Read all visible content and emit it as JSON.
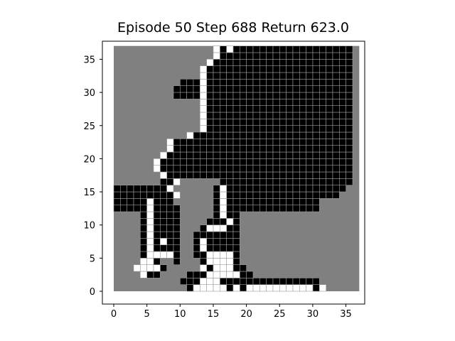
{
  "title": {
    "episode_label": "Episode",
    "episode": 50,
    "step_label": "Step",
    "step": 688,
    "return_label": "Return",
    "return": "623.0"
  },
  "chart_data": {
    "type": "heatmap",
    "x_ticks": [
      0,
      5,
      10,
      15,
      20,
      25,
      30,
      35
    ],
    "y_ticks": [
      0,
      5,
      10,
      15,
      20,
      25,
      30,
      35
    ],
    "xlim": [
      -1.5,
      37.5
    ],
    "ylim": [
      -1.8,
      38.5
    ],
    "grid": false,
    "colors": {
      "background": "#808080",
      "wall": "#000000",
      "path": "#ffffff",
      "frame": "#000000"
    },
    "grid_size": 37,
    "cells": {
      "0": {
        "black": [
          11,
          17,
          19,
          30
        ],
        "white": [
          12,
          13,
          14,
          15,
          16,
          18,
          20,
          21,
          22,
          23,
          24,
          25,
          26,
          27,
          28,
          29,
          31
        ]
      },
      "1": {
        "black": [
          10,
          11,
          12,
          16,
          17,
          18,
          19,
          20,
          21,
          22,
          23,
          24,
          25,
          26,
          27,
          28,
          29,
          30
        ],
        "white": [
          13,
          14,
          15
        ]
      },
      "2": {
        "black": [
          5,
          6,
          11,
          12,
          13,
          19,
          20
        ],
        "white": [
          4,
          14,
          15,
          16,
          17,
          18
        ]
      },
      "3": {
        "black": [
          7,
          14,
          18,
          19
        ],
        "white": [
          3,
          4,
          5,
          6,
          13,
          15,
          16,
          17
        ]
      },
      "4": {
        "black": [
          6,
          9,
          13,
          18
        ],
        "white": [
          4,
          5,
          14,
          15,
          16,
          17
        ]
      },
      "5": {
        "black": [
          4,
          9,
          12,
          13,
          18
        ],
        "white": [
          5,
          6,
          7,
          8,
          14,
          15,
          16,
          17
        ]
      },
      "6": {
        "black": [
          4,
          6,
          7,
          8,
          9,
          12,
          14,
          15,
          16,
          17,
          18
        ],
        "white": [
          5,
          13
        ]
      },
      "7": {
        "black": [
          4,
          6,
          8,
          9,
          12,
          14,
          15,
          16,
          17,
          18
        ],
        "white": [
          5,
          7,
          13
        ]
      },
      "8": {
        "black": [
          4,
          6,
          7,
          8,
          9,
          12,
          13,
          14,
          15,
          16,
          17,
          18
        ],
        "white": [
          5
        ]
      },
      "9": {
        "black": [
          4,
          6,
          7,
          8,
          9,
          13,
          17,
          18
        ],
        "white": [
          5,
          14,
          15,
          16
        ]
      },
      "10": {
        "black": [
          4,
          6,
          7,
          8,
          9,
          14,
          15,
          16,
          17,
          18
        ],
        "white": [
          5,
          17
        ]
      },
      "11": {
        "black": [
          4,
          6,
          7,
          8,
          9,
          15,
          17,
          18
        ],
        "white": [
          5,
          16
        ]
      },
      "12": {
        "black": [
          0,
          1,
          2,
          3,
          4,
          6,
          7,
          8,
          9,
          15,
          17,
          18,
          19,
          20,
          21,
          22,
          23,
          24,
          25,
          26,
          27,
          28,
          29,
          30
        ],
        "white": [
          5,
          16
        ]
      },
      "13": {
        "black": [
          0,
          1,
          2,
          3,
          4,
          6,
          7,
          8,
          15,
          17,
          18,
          19,
          20,
          21,
          22,
          23,
          24,
          25,
          26,
          27,
          28,
          29,
          30
        ],
        "white": [
          5,
          16
        ]
      },
      "14": {
        "black": [
          0,
          1,
          2,
          3,
          4,
          5,
          6,
          7,
          8,
          15,
          17,
          18,
          19,
          20,
          21,
          22,
          23,
          24,
          25,
          26,
          27,
          28,
          29,
          30,
          31,
          32,
          33
        ],
        "white": [
          9,
          16
        ]
      },
      "15": {
        "black": [
          0,
          1,
          2,
          3,
          4,
          5,
          6,
          7,
          15,
          17,
          18,
          19,
          20,
          21,
          22,
          23,
          24,
          25,
          26,
          27,
          28,
          29,
          30,
          31,
          32,
          33,
          34
        ],
        "white": [
          8,
          16
        ]
      },
      "16": {
        "black": [
          7,
          8,
          16,
          17,
          18,
          19,
          20,
          21,
          22,
          23,
          24,
          25,
          26,
          27,
          28,
          29,
          30,
          31,
          32,
          33,
          34,
          35
        ],
        "white": [
          9
        ]
      },
      "17": {
        "black": [
          8,
          9,
          10,
          11,
          12,
          13,
          14,
          15,
          16,
          17,
          18,
          19,
          20,
          21,
          22,
          23,
          24,
          25,
          26,
          27,
          28,
          29,
          30,
          31,
          32,
          33,
          34,
          35
        ],
        "white": [
          7
        ]
      },
      "18": {
        "black": [
          7,
          8,
          9,
          10,
          11,
          12,
          13,
          14,
          15,
          16,
          17,
          18,
          19,
          20,
          21,
          22,
          23,
          24,
          25,
          26,
          27,
          28,
          29,
          30,
          31,
          32,
          33,
          34,
          35
        ],
        "white": [
          6
        ]
      },
      "19": {
        "black": [
          7,
          8,
          9,
          10,
          11,
          12,
          13,
          14,
          15,
          16,
          17,
          18,
          19,
          20,
          21,
          22,
          23,
          24,
          25,
          26,
          27,
          28,
          29,
          30,
          31,
          32,
          33,
          34,
          35
        ],
        "white": [
          6
        ]
      },
      "20": {
        "black": [
          8,
          9,
          10,
          11,
          12,
          13,
          14,
          15,
          16,
          17,
          18,
          19,
          20,
          21,
          22,
          23,
          24,
          25,
          26,
          27,
          28,
          29,
          30,
          31,
          32,
          33,
          34,
          35
        ],
        "white": [
          7
        ]
      },
      "21": {
        "black": [
          9,
          10,
          11,
          12,
          13,
          14,
          15,
          16,
          17,
          18,
          19,
          20,
          21,
          22,
          23,
          24,
          25,
          26,
          27,
          28,
          29,
          30,
          31,
          32,
          33,
          34,
          35
        ],
        "white": [
          8
        ]
      },
      "22": {
        "black": [
          9,
          10,
          11,
          12,
          13,
          14,
          15,
          16,
          17,
          18,
          19,
          20,
          21,
          22,
          23,
          24,
          25,
          26,
          27,
          28,
          29,
          30,
          31,
          32,
          33,
          34,
          35
        ],
        "white": [
          8
        ]
      },
      "23": {
        "black": [
          12,
          13,
          14,
          15,
          16,
          17,
          18,
          19,
          20,
          21,
          22,
          23,
          24,
          25,
          26,
          27,
          28,
          29,
          30,
          31,
          32,
          33,
          34,
          35
        ],
        "white": [
          11
        ]
      },
      "24": {
        "black": [
          14,
          15,
          16,
          17,
          18,
          19,
          20,
          21,
          22,
          23,
          24,
          25,
          26,
          27,
          28,
          29,
          30,
          31,
          32,
          33,
          34,
          35
        ],
        "white": [
          13
        ]
      },
      "25": {
        "black": [
          14,
          15,
          16,
          17,
          18,
          19,
          20,
          21,
          22,
          23,
          24,
          25,
          26,
          27,
          28,
          29,
          30,
          31,
          32,
          33,
          34,
          35
        ],
        "white": [
          13
        ]
      },
      "26": {
        "black": [
          14,
          15,
          16,
          17,
          18,
          19,
          20,
          21,
          22,
          23,
          24,
          25,
          26,
          27,
          28,
          29,
          30,
          31,
          32,
          33,
          34,
          35
        ],
        "white": [
          13
        ]
      },
      "27": {
        "black": [
          14,
          15,
          16,
          17,
          18,
          19,
          20,
          21,
          22,
          23,
          24,
          25,
          26,
          27,
          28,
          29,
          30,
          31,
          32,
          33,
          34,
          35
        ],
        "white": [
          13
        ]
      },
      "28": {
        "black": [
          14,
          15,
          16,
          17,
          18,
          19,
          20,
          21,
          22,
          23,
          24,
          25,
          26,
          27,
          28,
          29,
          30,
          31,
          32,
          33,
          34,
          35
        ],
        "white": [
          13
        ]
      },
      "29": {
        "black": [
          9,
          10,
          11,
          12,
          14,
          15,
          16,
          17,
          18,
          19,
          20,
          21,
          22,
          23,
          24,
          25,
          26,
          27,
          28,
          29,
          30,
          31,
          32,
          33,
          34,
          35
        ],
        "white": [
          13
        ]
      },
      "30": {
        "black": [
          9,
          10,
          11,
          12,
          14,
          15,
          16,
          17,
          18,
          19,
          20,
          21,
          22,
          23,
          24,
          25,
          26,
          27,
          28,
          29,
          30,
          31,
          32,
          33,
          34,
          35
        ],
        "white": [
          13
        ]
      },
      "31": {
        "black": [
          10,
          11,
          12,
          14,
          15,
          16,
          17,
          18,
          19,
          20,
          21,
          22,
          23,
          24,
          25,
          26,
          27,
          28,
          29,
          30,
          31,
          32,
          33,
          34,
          35
        ],
        "white": [
          13
        ]
      },
      "32": {
        "black": [
          14,
          15,
          16,
          17,
          18,
          19,
          20,
          21,
          22,
          23,
          24,
          25,
          26,
          27,
          28,
          29,
          30,
          31,
          32,
          33,
          34,
          35
        ],
        "white": [
          13
        ]
      },
      "33": {
        "black": [
          14,
          15,
          16,
          17,
          18,
          19,
          20,
          21,
          22,
          23,
          24,
          25,
          26,
          27,
          28,
          29,
          30,
          31,
          32,
          33,
          34,
          35
        ],
        "white": [
          13
        ]
      },
      "34": {
        "black": [
          15,
          16,
          17,
          18,
          19,
          20,
          21,
          22,
          23,
          24,
          25,
          26,
          27,
          28,
          29,
          30,
          31,
          32,
          33,
          34,
          35
        ],
        "white": [
          14
        ]
      },
      "35": {
        "black": [
          16,
          17,
          18,
          19,
          20,
          21,
          22,
          23,
          24,
          25,
          26,
          27,
          28,
          29,
          30,
          31,
          32,
          33,
          34,
          35
        ],
        "white": [
          15
        ]
      },
      "36": {
        "black": [
          16,
          18,
          19,
          20,
          21,
          22,
          23,
          24,
          25,
          26,
          27,
          28,
          29,
          30,
          31,
          32,
          33,
          34,
          35
        ],
        "white": [
          15,
          17
        ]
      }
    }
  }
}
